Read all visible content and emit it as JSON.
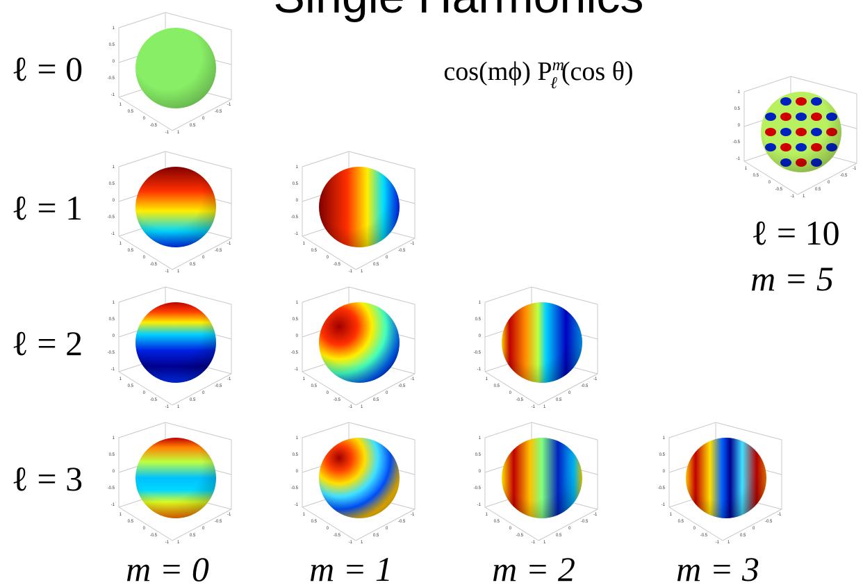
{
  "title": "Single Harmonics",
  "formula": {
    "base": "cos(mϕ) P",
    "sup": "m",
    "sub": "ℓ",
    "tail": "(cos θ)"
  },
  "rows": [
    "ℓ = 0",
    "ℓ = 1",
    "ℓ = 2",
    "ℓ = 3"
  ],
  "columns": [
    "m = 0",
    "m = 1",
    "m = 2",
    "m = 3"
  ],
  "inset": {
    "l": "ℓ = 10",
    "m": "m = 5"
  },
  "axis_ticks": [
    "1",
    "0.5",
    "0",
    "-0.5",
    "-1"
  ]
}
